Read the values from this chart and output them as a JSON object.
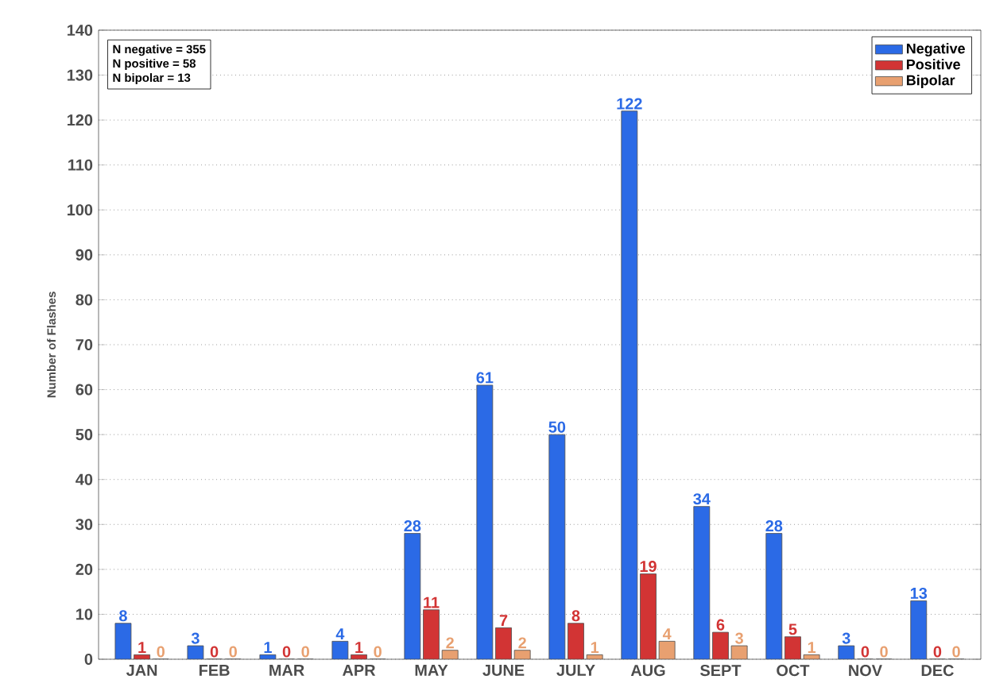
{
  "chart_data": {
    "type": "bar",
    "ylabel": "Number of Flashes",
    "categories": [
      "JAN",
      "FEB",
      "MAR",
      "APR",
      "MAY",
      "JUNE",
      "JULY",
      "AUG",
      "SEPT",
      "OCT",
      "NOV",
      "DEC"
    ],
    "series": [
      {
        "name": "Negative",
        "color": "#2b6ae6",
        "values": [
          8,
          3,
          1,
          4,
          28,
          61,
          50,
          122,
          34,
          28,
          3,
          13
        ]
      },
      {
        "name": "Positive",
        "color": "#d23434",
        "values": [
          1,
          0,
          0,
          1,
          11,
          7,
          8,
          19,
          6,
          5,
          0,
          0
        ]
      },
      {
        "name": "Bipolar",
        "color": "#e8a070",
        "values": [
          0,
          0,
          0,
          0,
          2,
          2,
          1,
          4,
          3,
          1,
          0,
          0
        ]
      }
    ],
    "ylim": [
      0,
      140
    ],
    "yticks": [
      0,
      10,
      20,
      30,
      40,
      50,
      60,
      70,
      80,
      90,
      100,
      110,
      120,
      130,
      140
    ],
    "grid": "y",
    "legend": "top right",
    "data_labels": true,
    "annotations": [
      "N negative = 355",
      "N positive = 58",
      "N bipolar   = 13"
    ]
  }
}
